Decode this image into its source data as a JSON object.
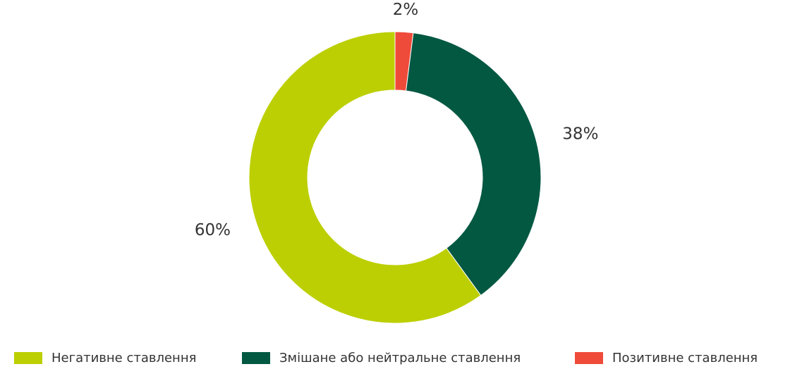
{
  "chart_data": {
    "type": "pie",
    "subtype": "donut",
    "title": "",
    "series": [
      {
        "name": "",
        "values": [
          {
            "label": "Позитивне ставлення",
            "value": 2,
            "display": "2%",
            "color": "#ef4b3a"
          },
          {
            "label": "Змішане або нейтральне ставлення",
            "value": 38,
            "display": "38%",
            "color": "#035842"
          },
          {
            "label": "Негативне ставлення",
            "value": 60,
            "display": "60%",
            "color": "#bccf02"
          }
        ]
      }
    ],
    "legend": {
      "position": "bottom",
      "items": [
        {
          "label": "Негативне ставлення",
          "color": "#bccf02"
        },
        {
          "label": "Змішане або нейтральне ставлення",
          "color": "#035842"
        },
        {
          "label": "Позитивне ставлення",
          "color": "#ef4b3a"
        }
      ]
    }
  }
}
